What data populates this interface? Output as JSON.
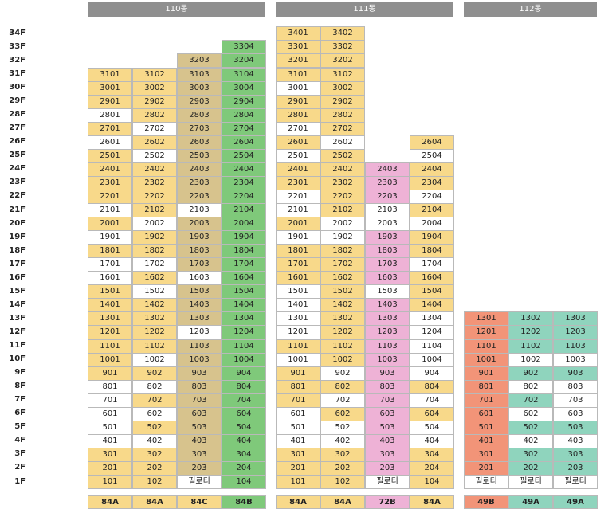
{
  "colors": {
    "yellow": "#f8d98a",
    "tan": "#d7c38d",
    "green": "#7fc97a",
    "pink": "#eeb2d6",
    "orange": "#f29478",
    "teal": "#8fd4bd",
    "white": "#ffffff",
    "header": "#8f8f8f"
  },
  "floors": [
    "34F",
    "33F",
    "32F",
    "31F",
    "30F",
    "29F",
    "28F",
    "27F",
    "26F",
    "25F",
    "24F",
    "23F",
    "22F",
    "21F",
    "20F",
    "19F",
    "18F",
    "17F",
    "16F",
    "15F",
    "14F",
    "13F",
    "12F",
    "11F",
    "10F",
    "9F",
    "8F",
    "7F",
    "6F",
    "5F",
    "4F",
    "3F",
    "2F",
    "1F"
  ],
  "buildings": [
    {
      "name": "110동",
      "types": [
        "84A",
        "84A",
        "84C",
        "84B"
      ],
      "type_colors": [
        "yellow",
        "yellow",
        "yellow",
        "green"
      ],
      "columns": [
        {
          "top_floor": 31,
          "color": "yellow",
          "white_floors": [
            28,
            26,
            21,
            19,
            17,
            16,
            8,
            7,
            6,
            5,
            4
          ],
          "labels": {
            "1": "101"
          }
        },
        {
          "top_floor": 31,
          "color": "yellow",
          "white_floors": [
            27,
            25,
            20,
            17,
            15,
            10,
            8,
            6,
            4
          ],
          "labels": {
            "1": "102"
          }
        },
        {
          "top_floor": 32,
          "color": "tan",
          "white_floors": [
            21,
            16,
            12
          ],
          "labels": {
            "1": "필로티"
          }
        },
        {
          "top_floor": 33,
          "color": "green",
          "white_floors": [],
          "labels": {
            "1": "104"
          }
        }
      ]
    },
    {
      "name": "111동",
      "types": [
        "84A",
        "84A",
        "72B",
        "84A"
      ],
      "type_colors": [
        "yellow",
        "yellow",
        "pink",
        "yellow"
      ],
      "columns": [
        {
          "top_floor": 34,
          "color": "yellow",
          "white_floors": [
            30,
            27,
            25,
            22,
            21,
            19,
            15,
            14,
            13,
            12,
            10,
            6,
            5,
            4
          ],
          "labels": {
            "1": "101"
          }
        },
        {
          "top_floor": 34,
          "color": "yellow",
          "white_floors": [
            26,
            20,
            19,
            9,
            7,
            5,
            4
          ],
          "labels": {
            "1": "102"
          }
        },
        {
          "top_floor": 24,
          "color": "pink",
          "white_floors": [
            21,
            20,
            15
          ],
          "labels": {
            "1": "필로티"
          }
        },
        {
          "top_floor": 26,
          "color": "yellow",
          "white_floors": [
            25,
            22,
            20,
            17,
            13,
            12,
            11,
            10,
            9,
            7,
            5,
            4
          ],
          "labels": {
            "1": "104"
          }
        }
      ]
    },
    {
      "name": "112동",
      "types": [
        "49B",
        "49A",
        "49A"
      ],
      "type_colors": [
        "orange",
        "teal",
        "teal"
      ],
      "columns": [
        {
          "top_floor": 13,
          "color": "orange",
          "white_floors": [],
          "labels": {
            "1": "필로티"
          }
        },
        {
          "top_floor": 13,
          "color": "teal",
          "white_floors": [
            10,
            8,
            6,
            4
          ],
          "labels": {
            "1": "필로티"
          }
        },
        {
          "top_floor": 13,
          "color": "teal",
          "white_floors": [
            10,
            8,
            7,
            6,
            4
          ],
          "labels": {
            "1": "필로티"
          }
        }
      ]
    }
  ]
}
